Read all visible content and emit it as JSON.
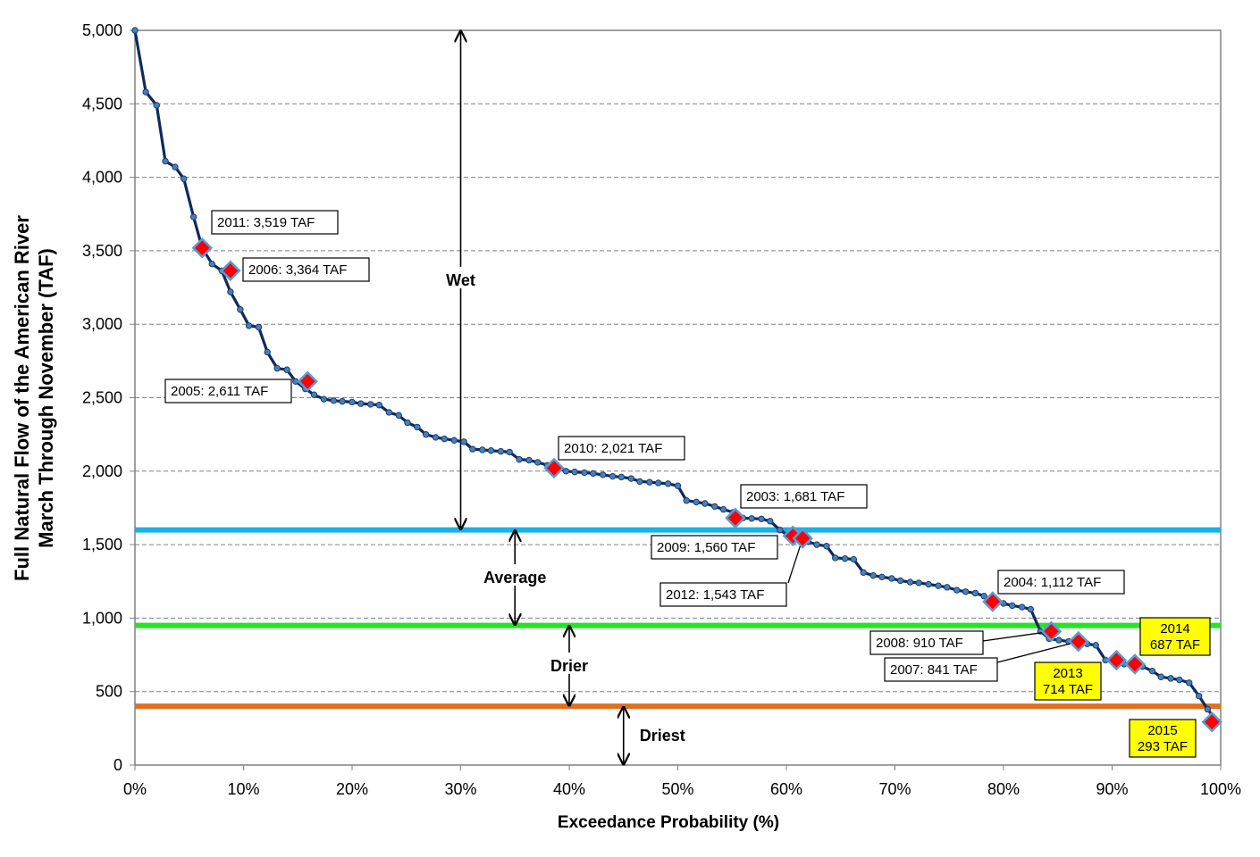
{
  "chart_data": {
    "type": "line",
    "title": "",
    "xlabel": "Exceedance Probability (%)",
    "ylabel_lines": [
      "Full Natural Flow of the American River",
      "March Through November (TAF)"
    ],
    "xlim": [
      0,
      100
    ],
    "ylim": [
      0,
      5000
    ],
    "x_ticks": [
      "0%",
      "10%",
      "20%",
      "30%",
      "40%",
      "50%",
      "60%",
      "70%",
      "80%",
      "90%",
      "100%"
    ],
    "y_ticks": [
      "0",
      "500",
      "1,000",
      "1,500",
      "2,000",
      "2,500",
      "3,000",
      "3,500",
      "4,000",
      "4,500",
      "5,000"
    ],
    "gridlines": "horizontal dashed",
    "colors": {
      "curve": "#1f3864",
      "marker": "#ff0000",
      "highlight": "#ffff00",
      "wet_line": "#1ab0e8",
      "avg_line": "#22e622",
      "drier_line": "#e07020"
    },
    "series": [
      {
        "x": [
          0,
          1,
          2,
          2.8,
          3.7,
          4.5,
          5.4,
          6.2,
          7.1,
          8,
          8.8,
          9.7,
          10.5,
          11.4,
          12.2,
          13.1,
          14,
          14.8,
          15.7,
          16.5,
          17.4,
          18.3,
          19.1,
          20,
          20.8,
          21.7,
          22.5,
          23.4,
          24.3,
          25.1,
          26,
          26.8,
          27.7,
          28.5,
          29.4,
          30.3,
          31.1,
          32,
          32.8,
          33.7,
          34.5,
          35.4,
          36.3,
          37.1,
          38,
          38.8,
          39.7,
          40.5,
          41.4,
          42.2,
          43.1,
          44,
          44.8,
          45.7,
          46.5,
          47.4,
          48.2,
          49.1,
          50,
          50.8,
          51.7,
          52.5,
          53.4,
          54.2,
          55.1,
          56,
          56.8,
          57.7,
          58.5,
          59.4,
          60.2,
          61.1,
          62,
          62.8,
          63.7,
          64.5,
          65.4,
          66.2,
          67.1,
          68,
          68.8,
          69.7,
          70.5,
          71.4,
          72.2,
          73.1,
          74,
          74.8,
          75.7,
          76.5,
          77.4,
          78.2,
          79.1,
          80,
          80.8,
          81.7,
          82.5,
          83.4,
          84.2,
          85.1,
          86,
          86.8,
          87.7,
          88.5,
          89.4,
          90.2,
          91.1,
          92,
          92.8,
          93.7,
          94.5,
          95.4,
          96.2,
          97.1,
          98,
          98.8,
          99.7
        ],
        "y": [
          5000,
          4580,
          4490,
          4110,
          4070,
          3990,
          3730,
          3519,
          3410,
          3364,
          3220,
          3100,
          2990,
          2980,
          2810,
          2700,
          2690,
          2611,
          2560,
          2520,
          2490,
          2480,
          2475,
          2470,
          2460,
          2455,
          2450,
          2400,
          2380,
          2330,
          2300,
          2250,
          2230,
          2220,
          2210,
          2200,
          2150,
          2145,
          2140,
          2135,
          2130,
          2080,
          2075,
          2060,
          2040,
          2021,
          2000,
          1995,
          1990,
          1985,
          1975,
          1965,
          1960,
          1950,
          1930,
          1925,
          1920,
          1915,
          1900,
          1800,
          1790,
          1780,
          1760,
          1740,
          1720,
          1681,
          1678,
          1675,
          1660,
          1600,
          1560,
          1543,
          1520,
          1500,
          1490,
          1410,
          1405,
          1400,
          1310,
          1290,
          1280,
          1270,
          1255,
          1245,
          1240,
          1230,
          1220,
          1210,
          1190,
          1180,
          1170,
          1150,
          1112,
          1100,
          1085,
          1075,
          1060,
          910,
          860,
          850,
          841,
          830,
          825,
          815,
          714,
          700,
          687,
          675,
          670,
          640,
          600,
          590,
          580,
          560,
          470,
          380,
          293
        ]
      }
    ],
    "highlighted_years": [
      {
        "label": "2011:  3,519 TAF",
        "x": 6.2,
        "y": 3519,
        "highlight": false
      },
      {
        "label": "2006:  3,364 TAF",
        "x": 8.8,
        "y": 3364,
        "highlight": false
      },
      {
        "label": "2005:  2,611 TAF",
        "x": 15.9,
        "y": 2611,
        "highlight": false
      },
      {
        "label": "2010:  2,021 TAF",
        "x": 38.6,
        "y": 2021,
        "highlight": false
      },
      {
        "label": "2003:  1,681 TAF",
        "x": 55.3,
        "y": 1681,
        "highlight": false
      },
      {
        "label": "2009:  1,560 TAF",
        "x": 60.6,
        "y": 1560,
        "highlight": false
      },
      {
        "label": "2012:  1,543 TAF",
        "x": 61.5,
        "y": 1543,
        "highlight": false
      },
      {
        "label": "2004:  1,112 TAF",
        "x": 79,
        "y": 1112,
        "highlight": false
      },
      {
        "label": "2008:  910 TAF",
        "x": 84.4,
        "y": 910,
        "highlight": false
      },
      {
        "label": "2007:  841 TAF",
        "x": 86.9,
        "y": 841,
        "highlight": false
      },
      {
        "label": "2014\n687 TAF",
        "x": 92.1,
        "y": 687,
        "highlight": true
      },
      {
        "label": "2013\n714 TAF",
        "x": 90.4,
        "y": 714,
        "highlight": true
      },
      {
        "label": "2015\n293 TAF",
        "x": 99.2,
        "y": 293,
        "highlight": true
      }
    ],
    "thresholds": [
      {
        "y": 1600,
        "color": "#1ab0e8"
      },
      {
        "y": 950,
        "color": "#22e622"
      },
      {
        "y": 400,
        "color": "#e07020"
      }
    ],
    "zones": [
      {
        "label": "Wet",
        "y_from": 1600,
        "y_to": 5000,
        "x": 30
      },
      {
        "label": "Average",
        "y_from": 950,
        "y_to": 1600,
        "x": 35
      },
      {
        "label": "Drier",
        "y_from": 400,
        "y_to": 950,
        "x": 40
      },
      {
        "label": "Driest",
        "y_from": 0,
        "y_to": 400,
        "x": 45
      }
    ]
  }
}
